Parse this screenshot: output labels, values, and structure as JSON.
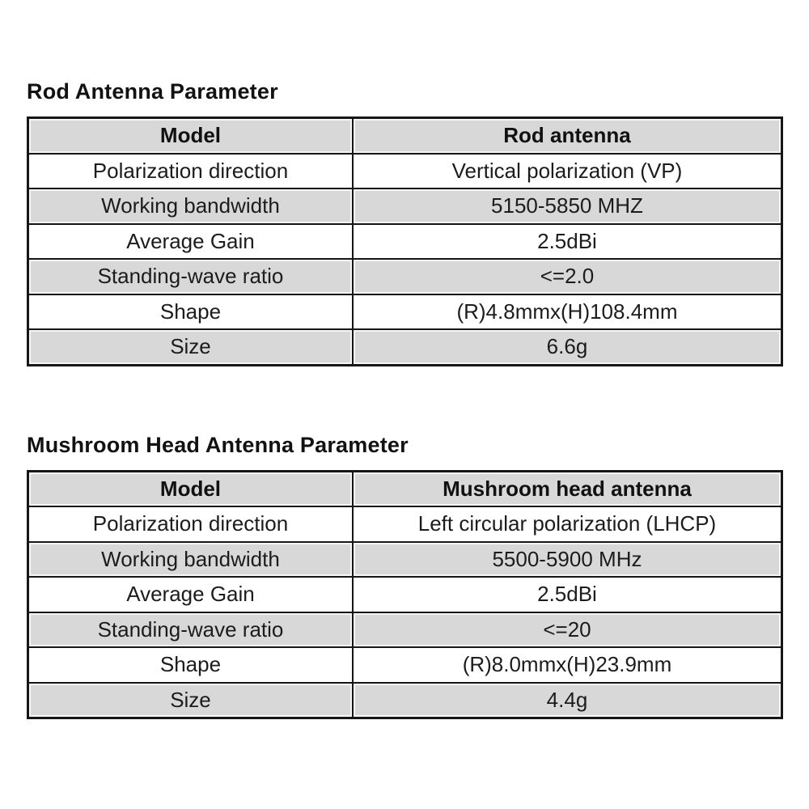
{
  "colors": {
    "background": "#ffffff",
    "row_shaded": "#d8d8d8",
    "row_plain": "#ffffff",
    "border": "#161616",
    "text": "#1c1c1c"
  },
  "tables": [
    {
      "title": "Rod Antenna Parameter",
      "header": {
        "label": "Model",
        "value": "Rod antenna"
      },
      "rows": [
        {
          "label": "Polarization direction",
          "value": "Vertical polarization (VP)"
        },
        {
          "label": "Working bandwidth",
          "value": "5150-5850 MHZ"
        },
        {
          "label": "Average Gain",
          "value": "2.5dBi"
        },
        {
          "label": "Standing-wave ratio",
          "value": "<=2.0"
        },
        {
          "label": "Shape",
          "value": "(R)4.8mmx(H)108.4mm"
        },
        {
          "label": "Size",
          "value": "6.6g"
        }
      ]
    },
    {
      "title": "Mushroom Head Antenna Parameter",
      "header": {
        "label": "Model",
        "value": "Mushroom head antenna"
      },
      "rows": [
        {
          "label": "Polarization direction",
          "value": "Left circular polarization (LHCP)"
        },
        {
          "label": "Working bandwidth",
          "value": "5500-5900 MHz"
        },
        {
          "label": "Average Gain",
          "value": "2.5dBi"
        },
        {
          "label": "Standing-wave ratio",
          "value": "<=20"
        },
        {
          "label": "Shape",
          "value": "(R)8.0mmx(H)23.9mm"
        },
        {
          "label": "Size",
          "value": "4.4g"
        }
      ]
    }
  ]
}
